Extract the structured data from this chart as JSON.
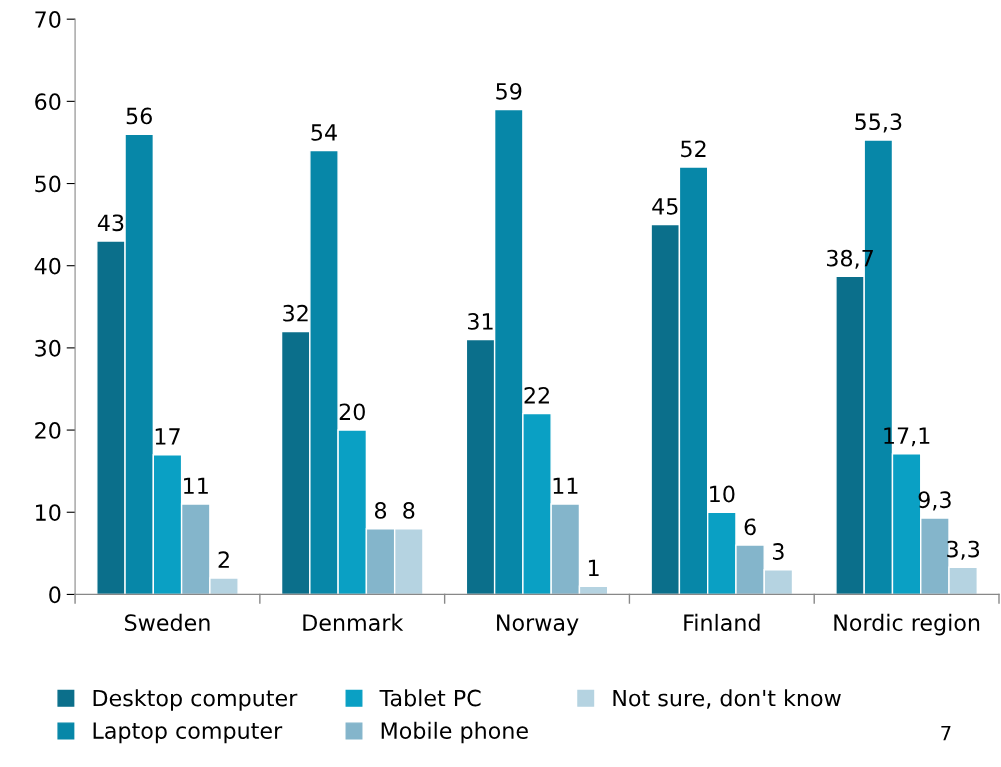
{
  "chart_data": {
    "type": "bar",
    "categories": [
      "Sweden",
      "Denmark",
      "Norway",
      "Finland",
      "Nordic region"
    ],
    "series": [
      {
        "name": "Desktop computer",
        "color": "#0b6f8b",
        "values": [
          43,
          32,
          31,
          45,
          38.7
        ],
        "value_labels": [
          "43",
          "32",
          "31",
          "45",
          "38,7"
        ]
      },
      {
        "name": "Laptop computer",
        "color": "#0787a8",
        "values": [
          56,
          54,
          59,
          52,
          55.3
        ],
        "value_labels": [
          "56",
          "54",
          "59",
          "52",
          "55,3"
        ]
      },
      {
        "name": "Tablet PC",
        "color": "#0aa0c4",
        "values": [
          17,
          20,
          22,
          10,
          17.1
        ],
        "value_labels": [
          "17",
          "20",
          "22",
          "10",
          "17,1"
        ]
      },
      {
        "name": "Mobile phone",
        "color": "#84b5cb",
        "values": [
          11,
          8,
          11,
          6,
          9.3
        ],
        "value_labels": [
          "11",
          "8",
          "11",
          "6",
          "9,3"
        ]
      },
      {
        "name": "Not sure, don't know",
        "color": "#b5d3e1",
        "values": [
          2,
          8,
          1,
          3,
          3.3
        ],
        "value_labels": [
          "2",
          "8",
          "1",
          "3",
          "3,3"
        ]
      }
    ],
    "ylim": [
      0,
      70
    ],
    "yticks": [
      0,
      10,
      20,
      30,
      40,
      50,
      60,
      70
    ],
    "grid": false,
    "legend": "bottom",
    "annotations": [
      "7"
    ]
  }
}
